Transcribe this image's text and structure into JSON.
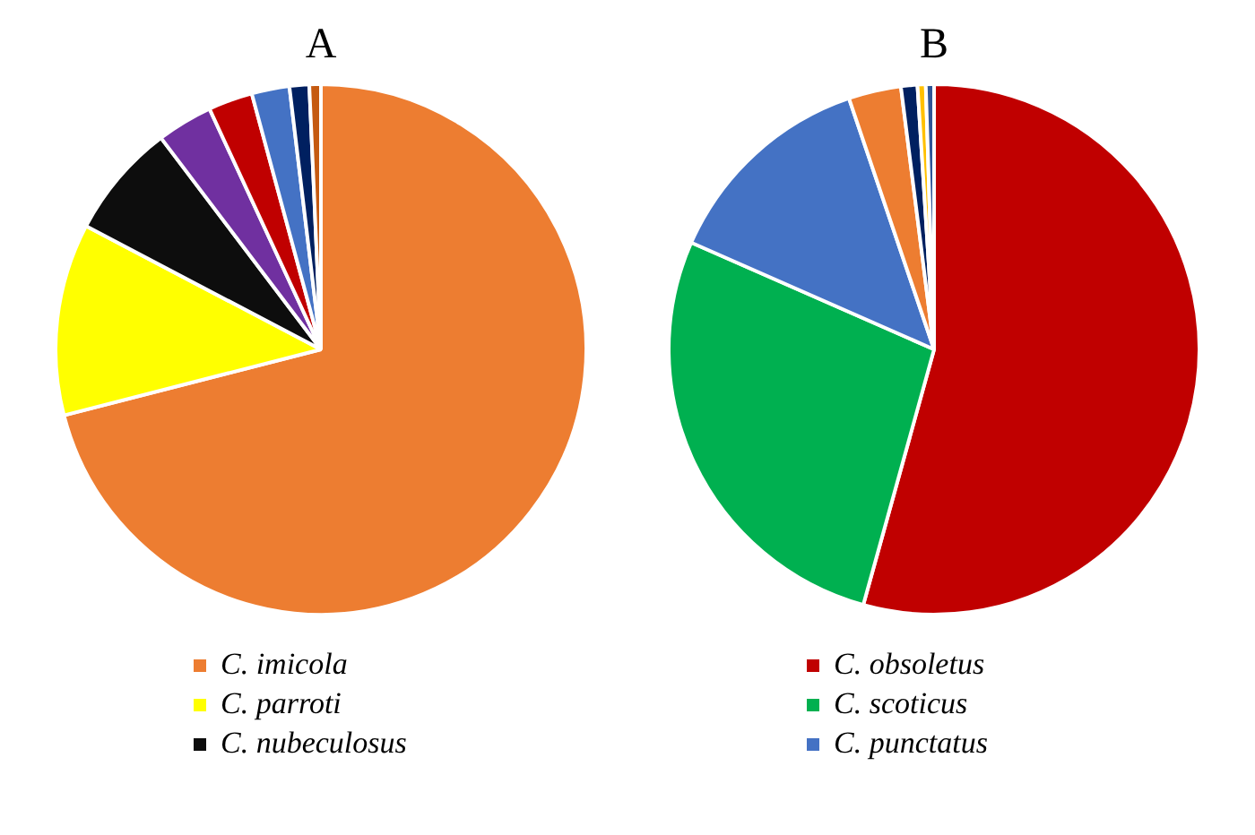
{
  "chart_data": [
    {
      "type": "pie",
      "title": "A",
      "categories": [
        "C. imicola",
        "C. parroti",
        "C. nubeculosus",
        null,
        null,
        null,
        null,
        null
      ],
      "values": [
        71,
        11.7,
        7,
        3.4,
        2.7,
        2.3,
        1.2,
        0.7
      ],
      "colors": [
        "#ed7d31",
        "#ffff00",
        "#0d0d0d",
        "#7030a0",
        "#c00000",
        "#4472c4",
        "#002060",
        "#c55a11"
      ],
      "legend": "bottom"
    },
    {
      "type": "pie",
      "title": "B",
      "categories": [
        "C. obsoletus",
        "C. scoticus",
        "C. punctatus",
        null,
        null,
        null,
        null
      ],
      "values": [
        54.3,
        27.3,
        13.2,
        3.2,
        1,
        0.5,
        0.5
      ],
      "colors": [
        "#c00000",
        "#00b050",
        "#4472c4",
        "#ed7d31",
        "#002060",
        "#ffc000",
        "#2f5597"
      ],
      "legend": "bottom"
    }
  ]
}
